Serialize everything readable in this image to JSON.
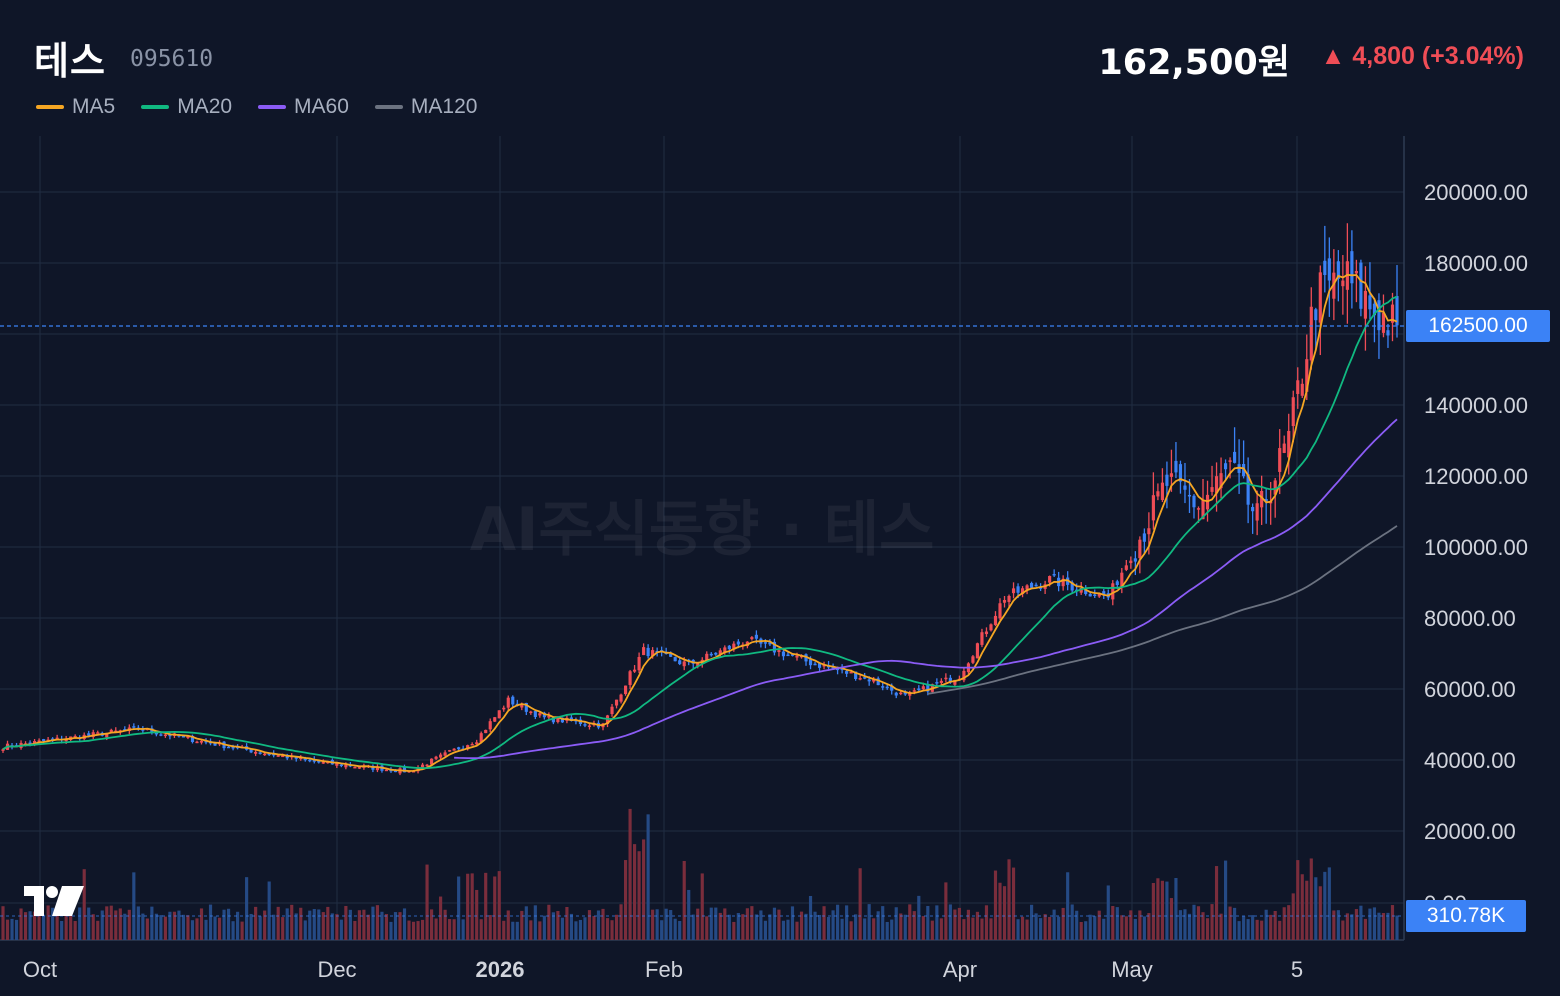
{
  "header": {
    "stock_name": "테스",
    "stock_code": "095610",
    "price": "162,500원",
    "change": "▲ 4,800 (+3.04%)"
  },
  "watermark": "AI주식동향 · 테스",
  "legend": [
    {
      "label": "MA5",
      "color": "#f5a623"
    },
    {
      "label": "MA20",
      "color": "#10b981"
    },
    {
      "label": "MA60",
      "color": "#8b5cf6"
    },
    {
      "label": "MA120",
      "color": "#6b7280"
    }
  ],
  "price_label": "162500.00",
  "volume_label": "310.78K",
  "colors": {
    "up": "#ef4d56",
    "down": "#3b82f6",
    "up_volume": "#7a2d3c",
    "down_volume": "#254a85",
    "grid": "#212d42",
    "background": "#0f1628"
  },
  "logo_icon": "tradingview-logo-icon",
  "chart_data": {
    "type": "candlestick",
    "y_ticks": [
      "200000.00",
      "180000.00",
      "140000.00",
      "120000.00",
      "100000.00",
      "80000.00",
      "60000.00",
      "40000.00",
      "20000.00",
      "0.00"
    ],
    "x_ticks": [
      "Oct",
      "Dec",
      "2026",
      "Feb",
      "Apr",
      "May",
      "5"
    ],
    "ylim": [
      0,
      215000
    ],
    "current_price": 162500,
    "current_volume": 310780,
    "grid": true,
    "keypoints": [
      {
        "i": 0,
        "c": 44000
      },
      {
        "i": 30,
        "c": 49000
      },
      {
        "i": 50,
        "c": 44000
      },
      {
        "i": 70,
        "c": 39500
      },
      {
        "i": 90,
        "c": 37000
      },
      {
        "i": 105,
        "c": 46000
      },
      {
        "i": 112,
        "c": 57000
      },
      {
        "i": 120,
        "c": 52000
      },
      {
        "i": 133,
        "c": 50000
      },
      {
        "i": 138,
        "c": 62000
      },
      {
        "i": 142,
        "c": 71000
      },
      {
        "i": 152,
        "c": 67000
      },
      {
        "i": 165,
        "c": 74000
      },
      {
        "i": 178,
        "c": 68000
      },
      {
        "i": 192,
        "c": 63000
      },
      {
        "i": 200,
        "c": 58000
      },
      {
        "i": 212,
        "c": 64000
      },
      {
        "i": 222,
        "c": 86000
      },
      {
        "i": 232,
        "c": 91000
      },
      {
        "i": 245,
        "c": 86000
      },
      {
        "i": 250,
        "c": 98000
      },
      {
        "i": 258,
        "c": 118000
      },
      {
        "i": 265,
        "c": 112000
      },
      {
        "i": 272,
        "c": 122000
      },
      {
        "i": 278,
        "c": 108000
      },
      {
        "i": 285,
        "c": 130000
      },
      {
        "i": 291,
        "c": 170000
      },
      {
        "i": 297,
        "c": 176000
      },
      {
        "i": 303,
        "c": 168000
      },
      {
        "i": 308,
        "c": 162500
      }
    ]
  }
}
